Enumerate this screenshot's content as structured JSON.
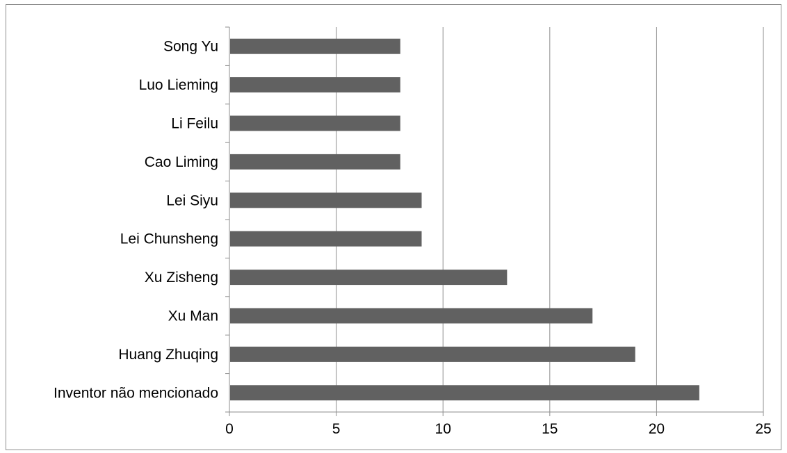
{
  "chart_data": {
    "type": "bar",
    "orientation": "horizontal",
    "title": "",
    "xlabel": "",
    "ylabel": "",
    "categories": [
      "Inventor não mencionado",
      "Huang Zhuqing",
      "Xu Man",
      "Xu Zisheng",
      "Lei Chunsheng",
      "Lei Siyu",
      "Cao Liming",
      "Li Feilu",
      "Luo Lieming",
      "Song Yu"
    ],
    "values": [
      22,
      19,
      17,
      13,
      9,
      9,
      8,
      8,
      8,
      8
    ],
    "xlim": [
      0,
      25
    ],
    "xticks": [
      0,
      5,
      10,
      15,
      20,
      25
    ],
    "grid": true,
    "legend": "none",
    "bar_color": "#616161"
  }
}
